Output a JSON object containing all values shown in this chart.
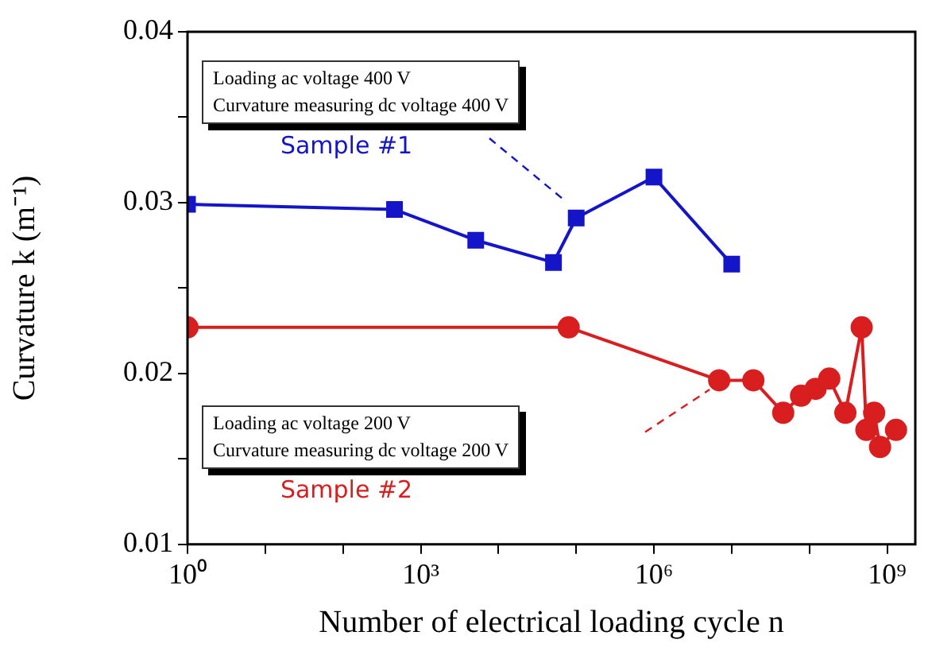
{
  "chart_data": {
    "type": "line",
    "xlabel": "Number of electrical loading cycle n",
    "ylabel": "Curvature k (m⁻¹)",
    "log": "x",
    "xlim": [
      1,
      2300000000
    ],
    "xticks": [
      {
        "value": 1,
        "label": "10⁰"
      },
      {
        "value": 10,
        "label": null
      },
      {
        "value": 100,
        "label": null
      },
      {
        "value": 1000,
        "label": "10³"
      },
      {
        "value": 10000,
        "label": null
      },
      {
        "value": 100000,
        "label": null
      },
      {
        "value": 1000000,
        "label": "10⁶"
      },
      {
        "value": 10000000,
        "label": null
      },
      {
        "value": 100000000,
        "label": null
      },
      {
        "value": 1000000000,
        "label": "10⁹"
      }
    ],
    "ylim": [
      0.01,
      0.04
    ],
    "yticks": [
      0.01,
      {
        "value": 0.015,
        "label": null
      },
      0.02,
      {
        "value": 0.025,
        "label": null
      },
      0.03,
      {
        "value": 0.035,
        "label": null
      },
      0.04
    ],
    "grid": false,
    "legend": false,
    "line_style": "solid",
    "series": [
      {
        "name": "Sample #1",
        "color": "#1414c8",
        "marker": "square",
        "x": [
          1,
          460,
          5100,
          51000,
          100000,
          1000000,
          10000000
        ],
        "values": [
          0.0299,
          0.0296,
          0.0278,
          0.0265,
          0.0291,
          0.0315,
          0.0264
        ]
      },
      {
        "name": "Sample #2",
        "color": "#d81e1e",
        "marker": "circle",
        "x": [
          1,
          80000,
          6900000,
          19000000,
          46000000,
          78000000,
          120000000,
          180000000,
          290000000,
          470000000,
          540000000,
          680000000,
          810000000,
          1300000000
        ],
        "values": [
          0.0227,
          0.0227,
          0.0196,
          0.0196,
          0.0177,
          0.0187,
          0.0191,
          0.0197,
          0.0177,
          0.0227,
          0.0167,
          0.0177,
          0.0157,
          0.0167
        ]
      }
    ],
    "annotations": [
      "Loading ac voltage 400 V",
      "Curvature measuring dc voltage 400 V",
      "Loading ac voltage 200 V",
      "Curvature measuring dc voltage 200 V"
    ]
  }
}
